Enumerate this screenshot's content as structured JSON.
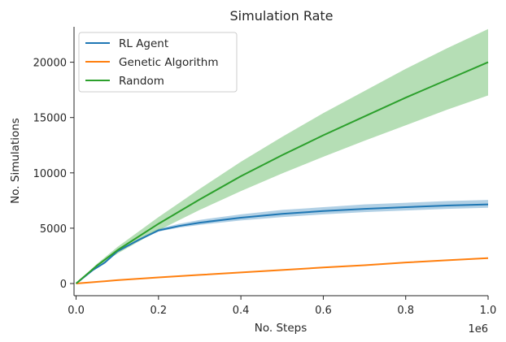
{
  "chart_data": {
    "type": "line",
    "title": "Simulation Rate",
    "xlabel": "No. Steps",
    "ylabel": "No. Simulations",
    "x_offset_label": "1e6",
    "xlim": [
      -0.005,
      1.0
    ],
    "ylim": [
      -1100,
      23200
    ],
    "x_ticks": [
      0.0,
      0.2,
      0.4,
      0.6,
      0.8,
      1.0
    ],
    "x_tick_labels": [
      "0.0",
      "0.2",
      "0.4",
      "0.6",
      "0.8",
      "1.0"
    ],
    "y_ticks": [
      0,
      5000,
      10000,
      15000,
      20000
    ],
    "y_tick_labels": [
      "0",
      "5000",
      "10000",
      "15000",
      "20000"
    ],
    "grid": false,
    "legend_position": "top-left",
    "series": [
      {
        "name": "RL Agent",
        "color": "#1f77b4",
        "band_color": "#1f77b4",
        "x": [
          0.0,
          0.02,
          0.04,
          0.07,
          0.1,
          0.15,
          0.2,
          0.25,
          0.3,
          0.4,
          0.5,
          0.6,
          0.7,
          0.8,
          0.9,
          1.0
        ],
        "y": [
          0,
          600,
          1200,
          1900,
          2900,
          3900,
          4800,
          5200,
          5500,
          5950,
          6300,
          6550,
          6750,
          6900,
          7050,
          7150
        ],
        "lower": [
          0,
          600,
          1200,
          1900,
          2900,
          3850,
          4700,
          5050,
          5300,
          5700,
          6000,
          6250,
          6450,
          6600,
          6750,
          6850
        ],
        "upper": [
          0,
          600,
          1200,
          1900,
          2950,
          4000,
          4950,
          5400,
          5750,
          6250,
          6650,
          6900,
          7150,
          7300,
          7450,
          7550
        ]
      },
      {
        "name": "Genetic Algorithm",
        "color": "#ff7f0e",
        "band_color": "#ff7f0e",
        "x": [
          0.0,
          0.1,
          0.2,
          0.3,
          0.4,
          0.5,
          0.6,
          0.7,
          0.8,
          0.9,
          1.0
        ],
        "y": [
          0,
          300,
          550,
          780,
          1000,
          1220,
          1450,
          1650,
          1900,
          2100,
          2300
        ],
        "lower": [
          0,
          280,
          520,
          750,
          960,
          1180,
          1400,
          1600,
          1850,
          2050,
          2240
        ],
        "upper": [
          0,
          320,
          580,
          810,
          1040,
          1260,
          1500,
          1700,
          1950,
          2150,
          2360
        ]
      },
      {
        "name": "Random",
        "color": "#2ca02c",
        "band_color": "#2ca02c",
        "x": [
          0.0,
          0.05,
          0.1,
          0.2,
          0.3,
          0.4,
          0.5,
          0.6,
          0.7,
          0.8,
          0.9,
          1.0
        ],
        "y": [
          0,
          1600,
          3000,
          5400,
          7600,
          9700,
          11600,
          13400,
          15100,
          16800,
          18400,
          20000
        ],
        "lower": [
          0,
          1450,
          2700,
          4800,
          6650,
          8350,
          9950,
          11450,
          12900,
          14300,
          15700,
          17000
        ],
        "upper": [
          0,
          1750,
          3300,
          6000,
          8550,
          11000,
          13250,
          15400,
          17400,
          19400,
          21250,
          23000
        ]
      }
    ]
  }
}
